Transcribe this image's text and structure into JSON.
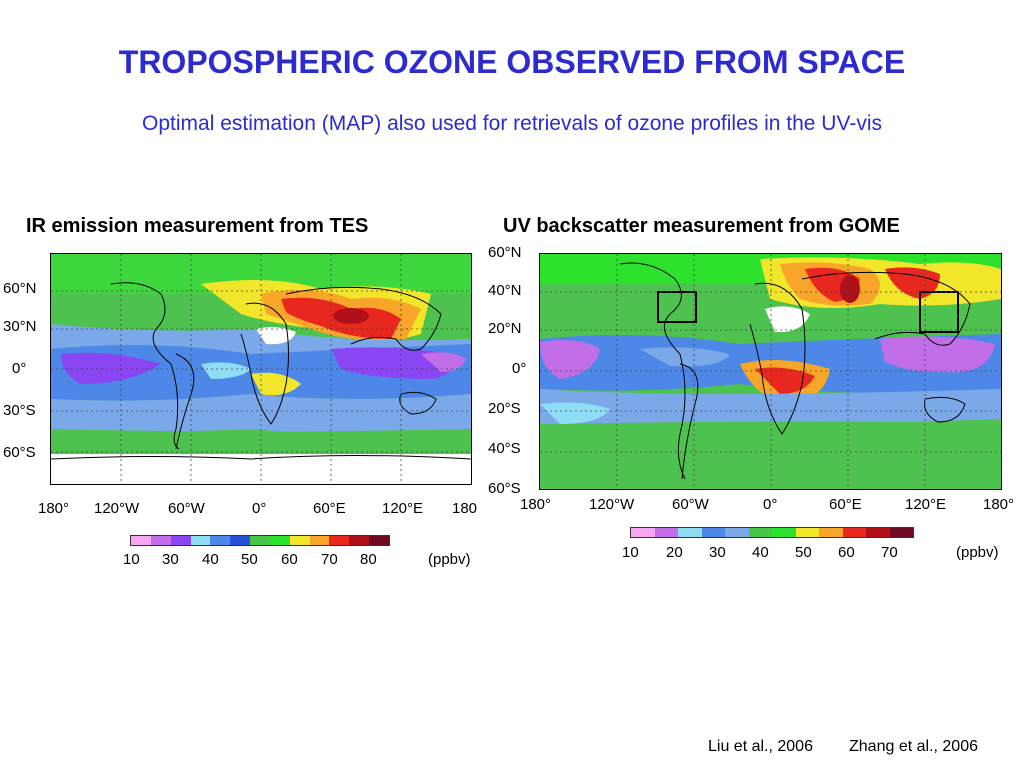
{
  "header": {
    "title": "TROPOSPHERIC OZONE OBSERVED FROM SPACE",
    "subtitle": "Optimal estimation (MAP) also used for retrievals of ozone profiles in the UV-vis"
  },
  "left_panel": {
    "title": "IR emission measurement from TES",
    "lat_ticks": [
      "60°N",
      "30°N",
      "0°",
      "30°S",
      "60°S"
    ],
    "lon_ticks": [
      "180°",
      "120°W",
      "60°W",
      "0°",
      "60°E",
      "120°E",
      "180"
    ],
    "colorbar_ticks": [
      "10",
      "30",
      "40",
      "50",
      "60",
      "70",
      "80"
    ],
    "unit": "(ppbv)",
    "colors": [
      "#f7a6f2",
      "#c26ee8",
      "#8a46f2",
      "#8fdcf5",
      "#4d88e8",
      "#2a4fd8",
      "#49c649",
      "#2de22d",
      "#f2e62a",
      "#f7a62a",
      "#e8281e",
      "#b0101a",
      "#6e0a22"
    ],
    "citation": "Liu et al., 2006"
  },
  "right_panel": {
    "title": "UV backscatter measurement from GOME",
    "lat_ticks": [
      "60°N",
      "40°N",
      "20°N",
      "0°",
      "20°S",
      "40°S",
      "60°S"
    ],
    "lon_ticks": [
      "180°",
      "120°W",
      "60°W",
      "0°",
      "60°E",
      "120°E",
      "180°"
    ],
    "colorbar_ticks": [
      "10",
      "20",
      "30",
      "40",
      "50",
      "60",
      "70"
    ],
    "unit": "(ppbv)",
    "colors": [
      "#f7a6f2",
      "#c26ee8",
      "#8fdcf5",
      "#4d88e8",
      "#7aa8e8",
      "#49c649",
      "#2de22d",
      "#f2e62a",
      "#f7a62a",
      "#e8281e",
      "#b0101a",
      "#6e0a22"
    ],
    "citation": "Zhang et al., 2006"
  }
}
